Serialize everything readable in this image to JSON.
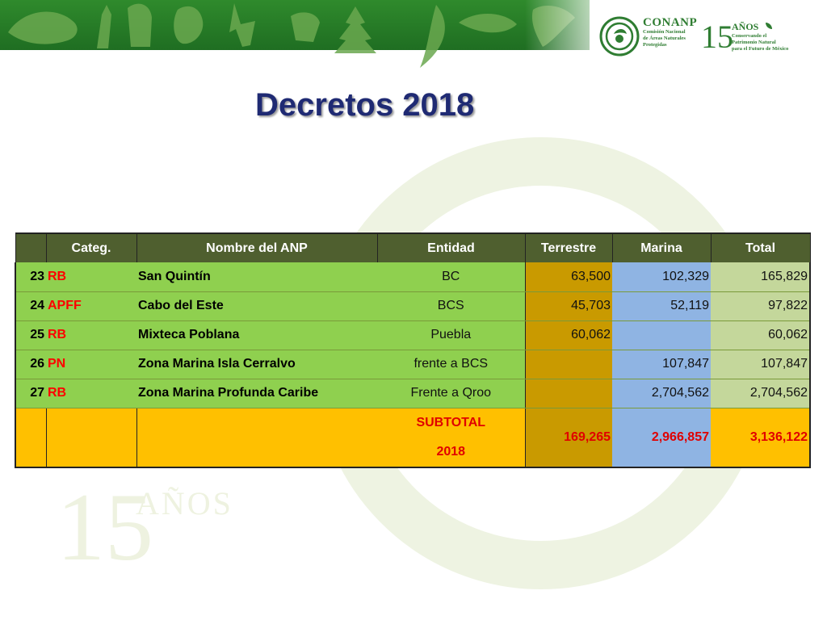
{
  "slide": {
    "title": "Decretos 2018"
  },
  "logos": {
    "conanp_name": "CONANP",
    "conanp_sub": [
      "Comisión Nacional",
      "de Áreas Naturales",
      "Protegidas"
    ],
    "fifteen_number": "15",
    "fifteen_anos": "AÑOS",
    "fifteen_sub": [
      "Conservando el",
      "Patrimonio Natural",
      "para el Futuro de México"
    ],
    "watermark_number": "15",
    "watermark_anos": "AÑOS"
  },
  "table": {
    "headers": [
      "",
      "Categ.",
      "Nombre del ANP",
      "Entidad",
      "Terrestre",
      "Marina",
      "Total"
    ],
    "rows": [
      {
        "id": "23",
        "cat": "RB",
        "name": "San Quintín",
        "entidad": "BC",
        "terrestre": "63,500",
        "marina": "102,329",
        "total": "165,829"
      },
      {
        "id": "24",
        "cat": "APFF",
        "name": "Cabo del Este",
        "entidad": "BCS",
        "terrestre": "45,703",
        "marina": "52,119",
        "total": "97,822"
      },
      {
        "id": "25",
        "cat": "RB",
        "name": "Mixteca Poblana",
        "entidad": "Puebla",
        "terrestre": "60,062",
        "marina": "",
        "total": "60,062"
      },
      {
        "id": "26",
        "cat": "PN",
        "name": "Zona Marina Isla Cerralvo",
        "entidad": "frente a BCS",
        "terrestre": "",
        "marina": "107,847",
        "total": "107,847"
      },
      {
        "id": "27",
        "cat": "RB",
        "name": "Zona Marina Profunda Caribe",
        "entidad": "Frente a Qroo",
        "terrestre": "",
        "marina": "2,704,562",
        "total": "2,704,562"
      }
    ],
    "subtotal": {
      "label_line1": "SUBTOTAL",
      "label_line2": "2018",
      "terrestre": "169,265",
      "marina": "2,966,857",
      "total": "3,136,122"
    }
  },
  "colors": {
    "title": "#1f2a73",
    "header_bg": "#4f5f2f",
    "row_green": "#8fd04f",
    "terrestre_gold": "#c99a00",
    "marina_blue": "#8fb4e3",
    "total_pale": "#c4d79b",
    "subtotal_yellow": "#ffc000",
    "category_red": "#ff0000",
    "banner_green": "#2f8a2c"
  }
}
